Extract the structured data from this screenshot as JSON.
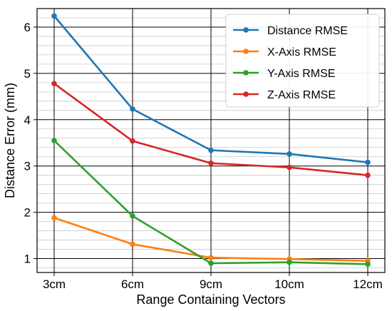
{
  "chart_data": {
    "type": "line",
    "categories": [
      "3cm",
      "6cm",
      "9cm",
      "10cm",
      "12cm"
    ],
    "xlabel": "Range Containing Vectors",
    "ylabel": "Distance Error (mm)",
    "ylim": [
      0.7,
      6.4
    ],
    "yticks": [
      1,
      2,
      3,
      4,
      5,
      6
    ],
    "minor_y_step": 0.2,
    "grid": true,
    "legend_position": "top-right",
    "series": [
      {
        "name": "Distance RMSE",
        "color": "#1f77b4",
        "values": [
          6.24,
          4.23,
          3.34,
          3.26,
          3.08
        ]
      },
      {
        "name": "X-Axis RMSE",
        "color": "#ff7f0e",
        "values": [
          1.88,
          1.31,
          1.02,
          0.99,
          0.95
        ]
      },
      {
        "name": "Y-Axis RMSE",
        "color": "#2ca02c",
        "values": [
          3.55,
          1.92,
          0.9,
          0.92,
          0.88
        ]
      },
      {
        "name": "Z-Axis RMSE",
        "color": "#d62728",
        "values": [
          4.78,
          3.54,
          3.06,
          2.97,
          2.8
        ]
      }
    ]
  }
}
